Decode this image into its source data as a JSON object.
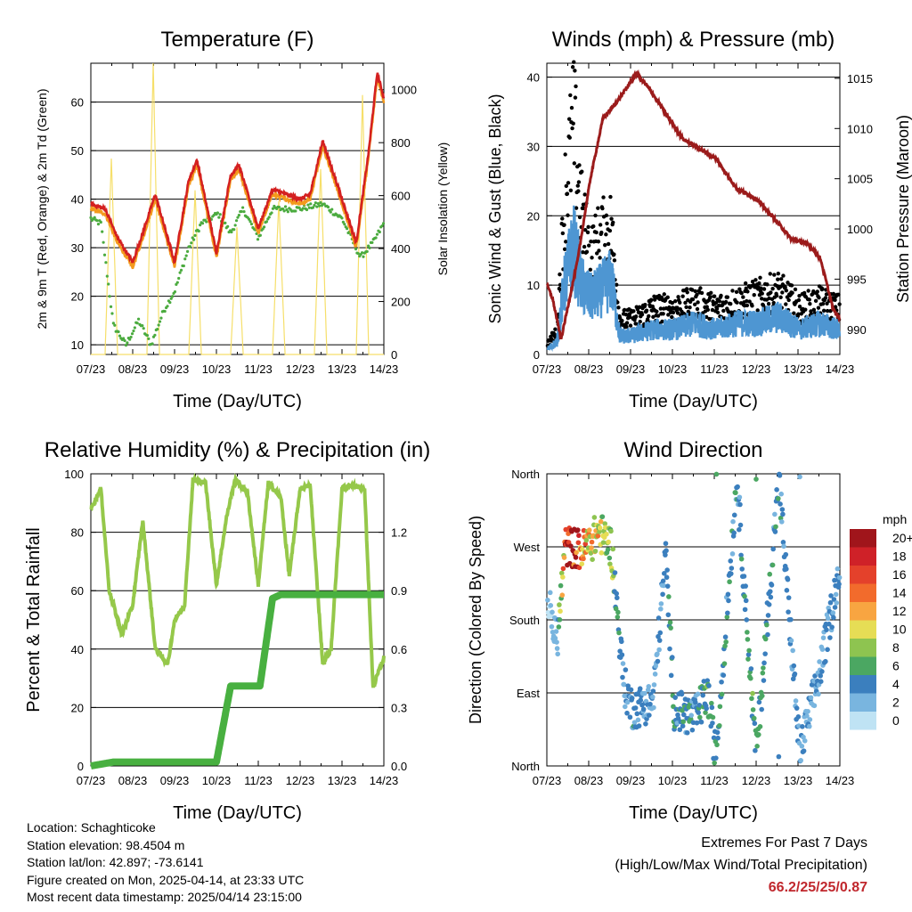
{
  "colors": {
    "temp_2m": "#d42020",
    "temp_9m": "#f39a1d",
    "dewpoint": "#4bab3f",
    "solar": "#f6df6a",
    "wind": "#4e96d2",
    "gust": "#000000",
    "pressure": "#9b1b1b",
    "rh": "#95c84a",
    "precip": "#48b040"
  },
  "x_ticks": [
    "07/23",
    "08/23",
    "09/23",
    "10/23",
    "11/23",
    "12/23",
    "13/23",
    "14/23"
  ],
  "panels": {
    "temperature": {
      "title": "Temperature (F)",
      "xlabel": "Time (Day/UTC)",
      "ylabel_left": "2m & 9m T (Red, Orange) & 2m Td (Green)",
      "ylabel_right": "Solar Insolation (Yellow)",
      "left_ticks": [
        "10",
        "20",
        "30",
        "40",
        "50",
        "60"
      ],
      "right_ticks": [
        "0",
        "200",
        "400",
        "600",
        "800",
        "1000"
      ]
    },
    "winds": {
      "title": "Winds (mph) & Pressure (mb)",
      "xlabel": "Time (Day/UTC)",
      "ylabel_left": "Sonic Wind & Gust (Blue, Black)",
      "ylabel_right": "Station Pressure (Maroon)",
      "left_ticks": [
        "0",
        "10",
        "20",
        "30",
        "40"
      ],
      "right_ticks": [
        "990",
        "995",
        "1000",
        "1005",
        "1010",
        "1015"
      ]
    },
    "humidity": {
      "title": "Relative Humidity (%) & Precipitation (in)",
      "xlabel": "Time (Day/UTC)",
      "ylabel_left": "Percent & Total Rainfall",
      "left_ticks": [
        "0",
        "20",
        "40",
        "60",
        "80",
        "100"
      ],
      "right_ticks": [
        "0.0",
        "0.3",
        "0.6",
        "0.9",
        "1.2"
      ]
    },
    "direction": {
      "title": "Wind Direction",
      "xlabel": "Time (Day/UTC)",
      "ylabel_left": "Direction (Colored By Speed)",
      "dir_ticks": [
        "North",
        "East",
        "South",
        "West",
        "North"
      ],
      "legend_title": "mph",
      "legend_labels": [
        "20+",
        "18",
        "16",
        "14",
        "12",
        "10",
        "8",
        "6",
        "4",
        "2",
        "0"
      ],
      "legend_colors": [
        "#a0151b",
        "#cf2128",
        "#e4412b",
        "#f26b2c",
        "#f8a541",
        "#e6dd55",
        "#8ec450",
        "#4ba762",
        "#3b7fbe",
        "#79b5df",
        "#bfe3f4"
      ]
    }
  },
  "info": {
    "location": "Location: Schaghticoke",
    "elevation": "Station elevation: 98.4504 m",
    "latlon": "Station lat/lon: 42.897; -73.6141",
    "created": "Figure created on Mon, 2025-04-14, at 23:33 UTC",
    "timestamp": "Most recent data timestamp: 2025/04/14 23:15:00"
  },
  "extremes": {
    "title": "Extremes For Past 7 Days",
    "subtitle": "(High/Low/Max Wind/Total Precipitation)",
    "values": "66.2/25/25/0.87"
  },
  "chart_data": [
    {
      "type": "line",
      "title": "Temperature (F)",
      "xlabel": "Time (Day/UTC)",
      "ylabel": "2m & 9m T (Red, Orange) & 2m Td (Green)",
      "y2label": "Solar Insolation (Yellow)",
      "x_range_days": [
        7.96,
        14.96
      ],
      "ylim": [
        8,
        68
      ],
      "y2lim": [
        0,
        1100
      ],
      "series": [
        {
          "name": "2m T",
          "axis": "left",
          "x": [
            7.96,
            8.3,
            8.6,
            8.96,
            9.2,
            9.5,
            9.96,
            10.3,
            10.5,
            10.96,
            11.3,
            11.5,
            11.96,
            12.3,
            12.96,
            13.2,
            13.5,
            13.96,
            14.3,
            14.6,
            14.8,
            14.96
          ],
          "y": [
            39,
            38,
            32,
            27,
            33,
            41,
            27,
            44,
            48,
            29,
            45,
            47,
            34,
            42,
            40,
            41,
            52,
            40,
            31,
            50,
            66,
            61
          ]
        },
        {
          "name": "9m T",
          "axis": "left",
          "x": [
            7.96,
            8.3,
            8.6,
            8.96,
            9.2,
            9.5,
            9.96,
            10.3,
            10.5,
            10.96,
            11.3,
            11.5,
            11.96,
            12.3,
            12.96,
            13.2,
            13.5,
            13.96,
            14.3,
            14.6,
            14.8,
            14.96
          ],
          "y": [
            38,
            37,
            31,
            26,
            32,
            40,
            26,
            43,
            47,
            28,
            44,
            46,
            33,
            41,
            39,
            40,
            51,
            39,
            30,
            49,
            65,
            60
          ]
        },
        {
          "name": "2m Td",
          "axis": "left",
          "x": [
            7.96,
            8.2,
            8.5,
            8.8,
            9.1,
            9.4,
            9.7,
            9.96,
            10.3,
            10.6,
            11.0,
            11.3,
            11.6,
            11.96,
            12.3,
            12.96,
            13.5,
            13.96,
            14.4,
            14.7,
            14.96
          ],
          "y": [
            36,
            35,
            14,
            10,
            15,
            10,
            17,
            21,
            30,
            35,
            37,
            33,
            38,
            32,
            38,
            38,
            39,
            36,
            28,
            31,
            35
          ]
        },
        {
          "name": "Solar",
          "axis": "right",
          "x": [
            7.96,
            8.3,
            8.45,
            8.6,
            8.9,
            9.3,
            9.45,
            9.6,
            9.9,
            10.3,
            10.45,
            10.6,
            10.9,
            11.3,
            11.45,
            11.6,
            11.9,
            12.3,
            12.45,
            12.6,
            12.9,
            13.3,
            13.45,
            13.6,
            13.9,
            14.3,
            14.45,
            14.6,
            14.9,
            14.96
          ],
          "y": [
            0,
            0,
            740,
            0,
            0,
            0,
            1100,
            0,
            0,
            0,
            620,
            0,
            0,
            0,
            480,
            0,
            0,
            0,
            580,
            0,
            0,
            0,
            700,
            0,
            0,
            0,
            980,
            0,
            0,
            0
          ]
        }
      ]
    },
    {
      "type": "scatter",
      "title": "Winds (mph) & Pressure (mb)",
      "xlabel": "Time (Day/UTC)",
      "ylabel": "Sonic Wind & Gust (Blue, Black)",
      "y2label": "Station Pressure (Maroon)",
      "x_range_days": [
        7.96,
        14.96
      ],
      "ylim": [
        0,
        42
      ],
      "y2lim": [
        987.5,
        1016.5
      ],
      "series": [
        {
          "name": "Sonic Wind",
          "axis": "left",
          "x": [
            8.0,
            8.2,
            8.4,
            8.6,
            8.8,
            9.0,
            9.2,
            9.5,
            9.7,
            10.0,
            10.5,
            11.0,
            11.5,
            12.0,
            12.5,
            13.0,
            13.5,
            14.0,
            14.5,
            14.9
          ],
          "y": [
            1,
            2,
            12,
            17,
            11,
            9,
            10,
            12,
            3,
            3,
            4,
            4,
            5,
            4,
            5,
            5,
            6,
            4,
            5,
            4
          ]
        },
        {
          "name": "Gust",
          "axis": "left",
          "x": [
            8.0,
            8.2,
            8.4,
            8.6,
            8.8,
            9.0,
            9.2,
            9.5,
            9.7,
            10.0,
            10.5,
            11.0,
            11.5,
            12.0,
            12.5,
            13.0,
            13.5,
            14.0,
            14.5,
            14.9
          ],
          "y": [
            2,
            4,
            28,
            40,
            24,
            17,
            20,
            22,
            6,
            6,
            8,
            8,
            9,
            8,
            9,
            10,
            11,
            8,
            9,
            8
          ]
        },
        {
          "name": "Station Pressure",
          "axis": "right",
          "x": [
            7.96,
            8.1,
            8.3,
            8.7,
            9.0,
            9.3,
            9.7,
            10.1,
            10.4,
            10.8,
            11.2,
            11.6,
            12.0,
            12.5,
            12.96,
            13.4,
            13.8,
            14.2,
            14.5,
            14.8,
            14.96
          ],
          "y": [
            994.5,
            993,
            989,
            997,
            1005,
            1011,
            1013,
            1015.5,
            1014,
            1011.5,
            1009,
            1008,
            1007,
            1004,
            1003,
            1001,
            999,
            998.5,
            997,
            992,
            991
          ]
        }
      ]
    },
    {
      "type": "line",
      "title": "Relative Humidity (%) & Precipitation (in)",
      "xlabel": "Time (Day/UTC)",
      "ylabel": "Percent & Total Rainfall",
      "x_range_days": [
        7.96,
        14.96
      ],
      "ylim": [
        0,
        100
      ],
      "y2lim": [
        0,
        1.5
      ],
      "series": [
        {
          "name": "RH",
          "axis": "left",
          "x": [
            7.96,
            8.2,
            8.4,
            8.7,
            8.96,
            9.2,
            9.5,
            9.8,
            9.96,
            10.2,
            10.4,
            10.7,
            10.96,
            11.2,
            11.4,
            11.7,
            11.96,
            12.2,
            12.5,
            12.7,
            12.96,
            13.2,
            13.5,
            13.7,
            13.96,
            14.2,
            14.5,
            14.7,
            14.96
          ],
          "y": [
            88,
            95,
            60,
            45,
            55,
            84,
            40,
            35,
            50,
            55,
            98,
            97,
            62,
            85,
            98,
            94,
            62,
            97,
            92,
            65,
            95,
            96,
            35,
            40,
            95,
            96,
            95,
            27,
            37
          ]
        },
        {
          "name": "Precipitation",
          "axis": "right",
          "x": [
            7.96,
            8.5,
            9.0,
            10.0,
            10.96,
            11.3,
            11.7,
            12.0,
            12.3,
            12.5,
            13.0,
            14.0,
            14.96
          ],
          "y": [
            0,
            0.02,
            0.02,
            0.02,
            0.02,
            0.41,
            0.41,
            0.41,
            0.86,
            0.88,
            0.88,
            0.88,
            0.88
          ]
        }
      ]
    },
    {
      "type": "scatter",
      "title": "Wind Direction",
      "xlabel": "Time (Day/UTC)",
      "ylabel": "Direction (Colored By Speed)",
      "x_range_days": [
        7.96,
        14.96
      ],
      "ylim": [
        0,
        360
      ],
      "y_ticks_deg": [
        0,
        90,
        180,
        270,
        360
      ],
      "series": [
        {
          "name": "Direction",
          "x": [
            8.0,
            8.2,
            8.4,
            8.6,
            8.8,
            9.0,
            9.2,
            9.5,
            9.8,
            10.0,
            10.5,
            10.8,
            11.0,
            11.5,
            11.8,
            12.0,
            12.5,
            12.96,
            13.5,
            14.0,
            14.5,
            14.9
          ],
          "y": [
            200,
            150,
            270,
            270,
            265,
            275,
            290,
            270,
            100,
            70,
            80,
            260,
            70,
            60,
            90,
            10,
            355,
            10,
            355,
            15,
            120,
            230
          ],
          "speed": [
            1,
            2,
            16,
            20,
            14,
            12,
            10,
            8,
            3,
            4,
            3,
            4,
            5,
            4,
            6,
            5,
            4,
            6,
            4,
            3,
            3,
            4
          ]
        }
      ]
    }
  ]
}
